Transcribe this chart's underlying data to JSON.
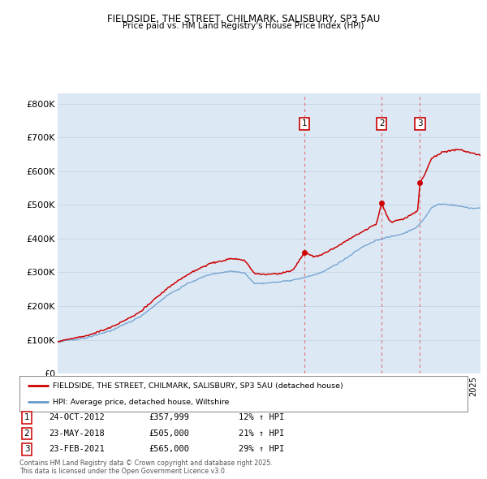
{
  "title": "FIELDSIDE, THE STREET, CHILMARK, SALISBURY, SP3 5AU",
  "subtitle": "Price paid vs. HM Land Registry's House Price Index (HPI)",
  "ylabel_ticks": [
    "£0",
    "£100K",
    "£200K",
    "£300K",
    "£400K",
    "£500K",
    "£600K",
    "£700K",
    "£800K"
  ],
  "ytick_values": [
    0,
    100000,
    200000,
    300000,
    400000,
    500000,
    600000,
    700000,
    800000
  ],
  "ylim": [
    0,
    830000
  ],
  "xlim_start": 1995.0,
  "xlim_end": 2025.5,
  "sale_dates": [
    2012.82,
    2018.39,
    2021.15
  ],
  "sale_prices": [
    357999,
    505000,
    565000
  ],
  "sale_labels": [
    "1",
    "2",
    "3"
  ],
  "sale_info": [
    {
      "label": "1",
      "date": "24-OCT-2012",
      "price": "£357,999",
      "pct": "12% ↑ HPI"
    },
    {
      "label": "2",
      "date": "23-MAY-2018",
      "price": "£505,000",
      "pct": "21% ↑ HPI"
    },
    {
      "label": "3",
      "date": "23-FEB-2021",
      "price": "£565,000",
      "pct": "29% ↑ HPI"
    }
  ],
  "legend_house_label": "FIELDSIDE, THE STREET, CHILMARK, SALISBURY, SP3 5AU (detached house)",
  "legend_hpi_label": "HPI: Average price, detached house, Wiltshire",
  "footnote": "Contains HM Land Registry data © Crown copyright and database right 2025.\nThis data is licensed under the Open Government Licence v3.0.",
  "house_color": "#cc0000",
  "hpi_color": "#6699cc",
  "bg_color": "#dce9f5",
  "plot_bg": "#ffffff",
  "grid_color": "#c8d8e8",
  "vline_color": "#e06060"
}
